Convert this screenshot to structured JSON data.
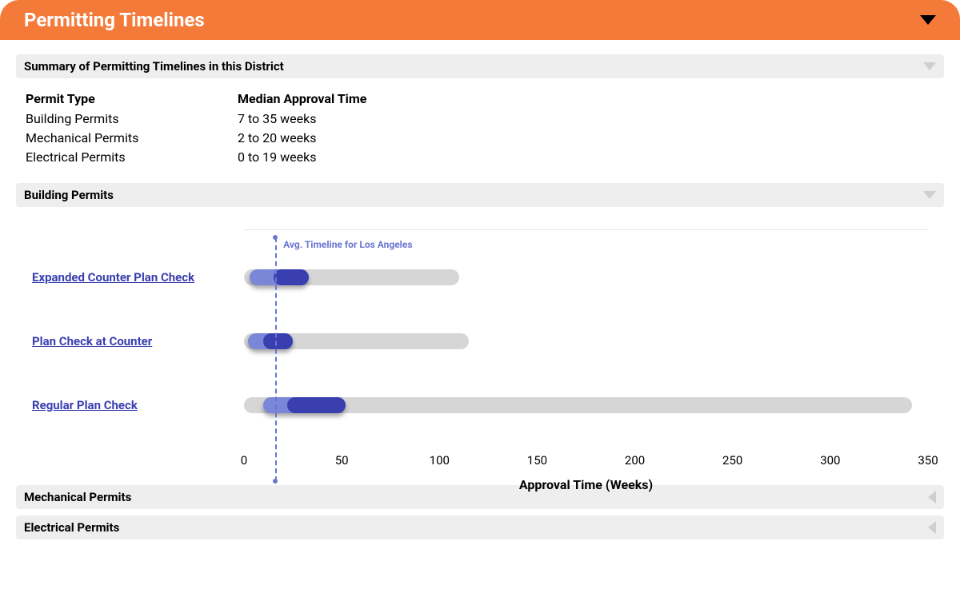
{
  "header": {
    "title": "Permitting Timelines",
    "background_color": "#f47a3a"
  },
  "summary": {
    "title": "Summary of Permitting Timelines in this District",
    "header_bg": "#eeeeee",
    "col1_header": "Permit Type",
    "col2_header": "Median Approval Time",
    "rows": [
      {
        "permit_type": "Building Permits",
        "median": "7 to 35 weeks"
      },
      {
        "permit_type": "Mechanical Permits",
        "median": "2 to 20 weeks"
      },
      {
        "permit_type": "Electrical Permits",
        "median": "0 to 19 weeks"
      }
    ]
  },
  "building_permits": {
    "title": "Building Permits",
    "header_bg": "#eeeeee",
    "axis_label": "Approval Time (Weeks)",
    "x_max": 350,
    "tick_step": 50,
    "ticks": [
      "0",
      "50",
      "100",
      "150",
      "200",
      "250",
      "300",
      "350"
    ],
    "track_color": "#d6d6d6",
    "bar_light_color": "#7a86d8",
    "bar_dark_color": "#3a3fb0",
    "link_color": "#3a3fb0",
    "reference": {
      "label": "Avg. Timeline for Los Angeles",
      "value": 16,
      "color": "#6a76d0"
    },
    "rows": [
      {
        "label": "Expanded Counter Plan Check",
        "track_start": 0,
        "track_end": 110,
        "light_start": 3,
        "light_end": 33,
        "dark_start": 15,
        "dark_end": 33
      },
      {
        "label": "Plan Check at Counter",
        "track_start": 0,
        "track_end": 115,
        "light_start": 2,
        "light_end": 25,
        "dark_start": 10,
        "dark_end": 25
      },
      {
        "label": "Regular Plan Check",
        "track_start": 0,
        "track_end": 342,
        "light_start": 10,
        "light_end": 52,
        "dark_start": 22,
        "dark_end": 52
      }
    ]
  },
  "mechanical_permits": {
    "title": "Mechanical Permits",
    "header_bg": "#eeeeee"
  },
  "electrical_permits": {
    "title": "Electrical Permits",
    "header_bg": "#eeeeee"
  }
}
